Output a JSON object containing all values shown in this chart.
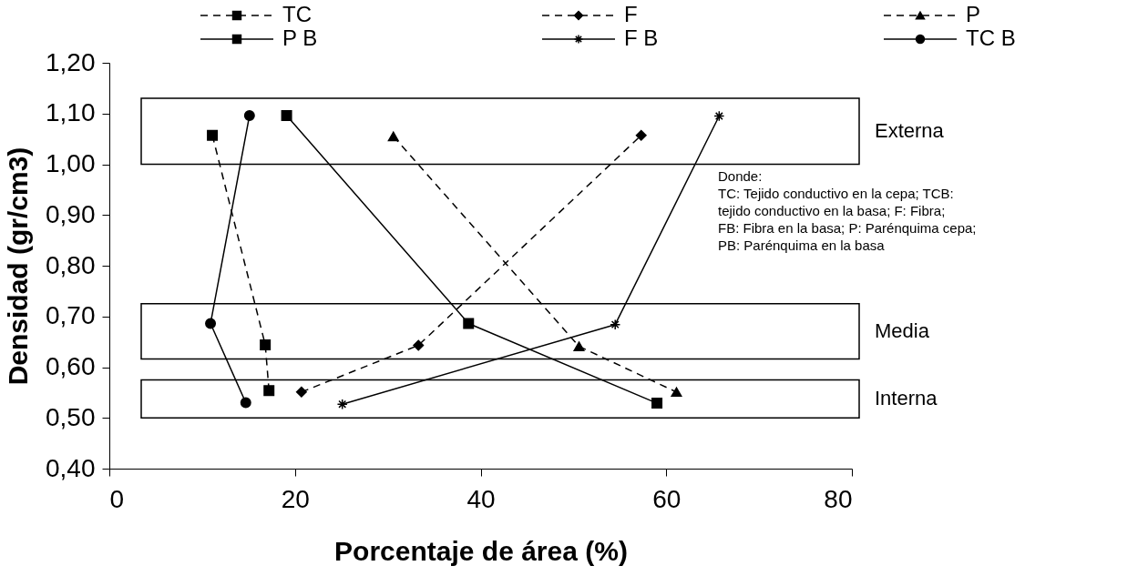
{
  "chart_data": {
    "type": "line",
    "xlabel": "Porcentaje de área (%)",
    "ylabel": "Densidad (gr/cm3)",
    "xlim": [
      0,
      80
    ],
    "ylim": [
      0.4,
      1.2
    ],
    "xticks": [
      0,
      20,
      40,
      60,
      80
    ],
    "yticks": [
      {
        "value": 0.4,
        "label": "0,40"
      },
      {
        "value": 0.5,
        "label": "0,50"
      },
      {
        "value": 0.6,
        "label": "0,60"
      },
      {
        "value": 0.7,
        "label": "0,70"
      },
      {
        "value": 0.8,
        "label": "0,80"
      },
      {
        "value": 0.9,
        "label": "0,90"
      },
      {
        "value": 1.0,
        "label": "1,00"
      },
      {
        "value": 1.1,
        "label": "1,10"
      },
      {
        "value": 1.2,
        "label": "1,20"
      }
    ],
    "grid": false,
    "legend": "top",
    "series": [
      {
        "name": "TC",
        "color": "#000000",
        "marker": "square",
        "line_style": "dashed",
        "x": [
          11.1,
          16.8,
          17.2
        ],
        "values": [
          1.057,
          0.644,
          0.554
        ]
      },
      {
        "name": "F",
        "color": "#000000",
        "marker": "diamond",
        "line_style": "dashed",
        "x": [
          20.7,
          33.3,
          57.3
        ],
        "values": [
          0.551,
          0.643,
          1.057
        ]
      },
      {
        "name": "P",
        "color": "#000000",
        "marker": "triangle",
        "line_style": "dashed",
        "x": [
          30.6,
          50.6,
          61.1
        ],
        "values": [
          1.055,
          0.641,
          0.551
        ]
      },
      {
        "name": "P B",
        "color": "#000000",
        "marker": "square",
        "line_style": "solid",
        "x": [
          19.1,
          38.7,
          59.0
        ],
        "values": [
          1.096,
          0.686,
          0.529
        ]
      },
      {
        "name": "F B",
        "color": "#000000",
        "marker": "cross",
        "line_style": "solid",
        "x": [
          25.1,
          54.5,
          65.7
        ],
        "values": [
          0.527,
          0.684,
          1.095
        ]
      },
      {
        "name": "TC B",
        "color": "#000000",
        "marker": "circle",
        "line_style": "solid",
        "x": [
          15.1,
          10.9,
          14.7
        ],
        "values": [
          1.096,
          0.686,
          0.53
        ]
      }
    ],
    "bands": [
      {
        "axis": "y",
        "from": 1.0,
        "to": 1.13,
        "label": "Externa"
      },
      {
        "axis": "y",
        "from": 0.616,
        "to": 0.725,
        "label": "Media"
      },
      {
        "axis": "y",
        "from": 0.5,
        "to": 0.575,
        "label": "Interna"
      }
    ],
    "annotations": [
      "Donde:",
      "TC: Tejido conductivo en la cepa; TCB: tejido conductivo en la basa; F: Fibra; FB: Fibra en la basa; P: Parénquima cepa; PB: Parénquima en la basa"
    ]
  }
}
